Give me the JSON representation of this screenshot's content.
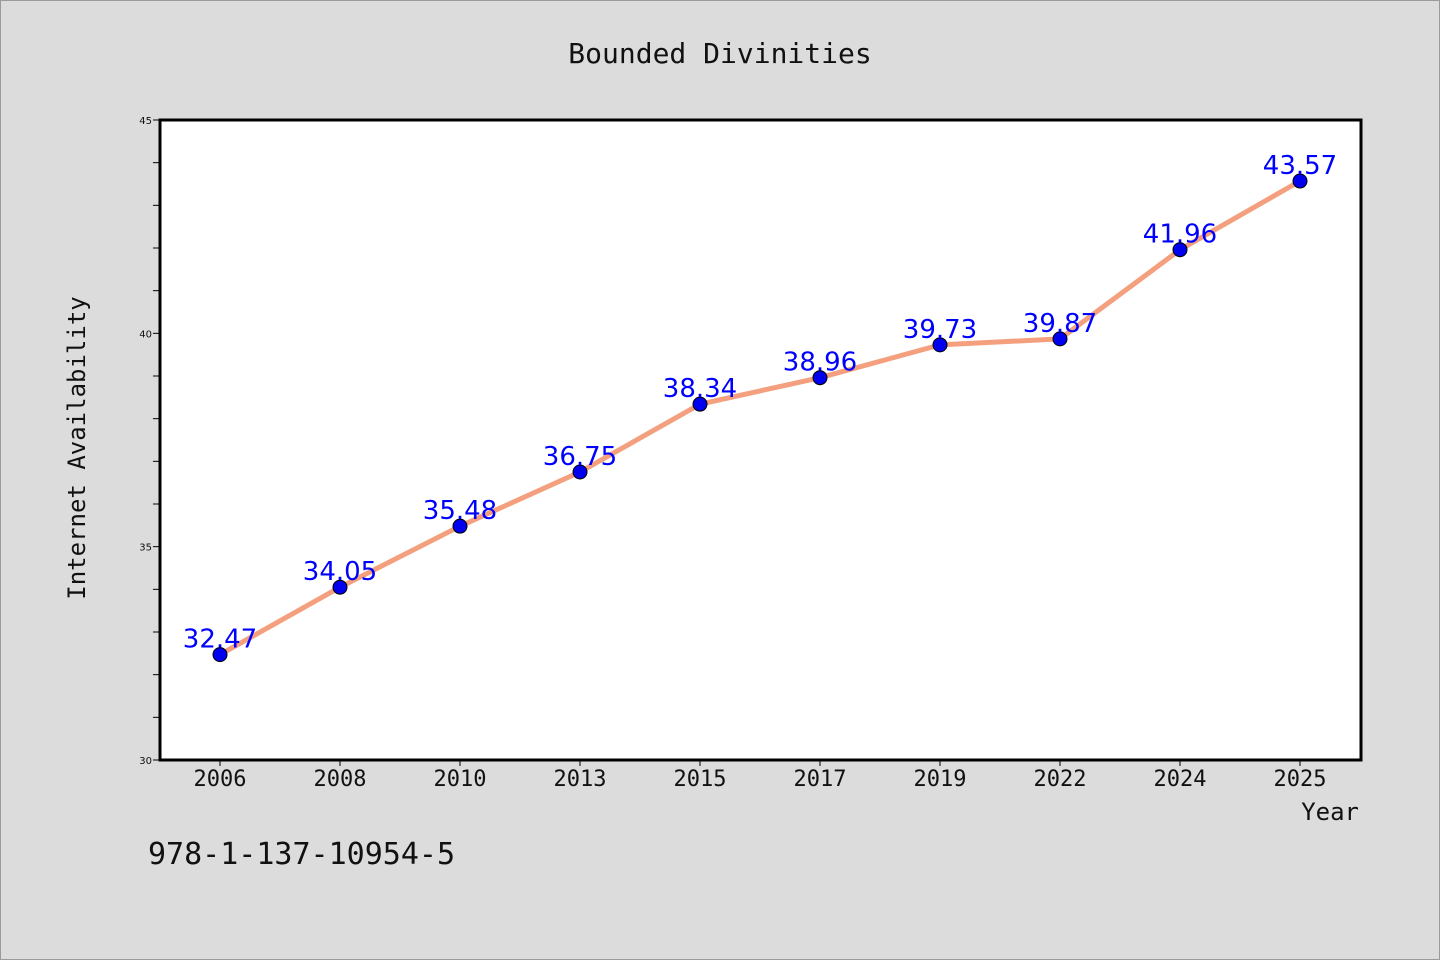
{
  "chart_data": {
    "type": "line",
    "title": "Bounded Divinities",
    "xlabel": "Year",
    "ylabel": "Internet Availability",
    "ylim": [
      30,
      45
    ],
    "y_ticks": [
      30,
      35,
      40,
      45
    ],
    "categories": [
      "2006",
      "2008",
      "2010",
      "2013",
      "2015",
      "2017",
      "2019",
      "2022",
      "2024",
      "2025"
    ],
    "series": [
      {
        "values": [
          32.47,
          34.05,
          35.48,
          36.75,
          38.34,
          38.96,
          39.73,
          39.87,
          41.96,
          43.57
        ],
        "line_color": "#f4a07e",
        "marker_color": "#0000ee",
        "label_color": "#0000ff"
      }
    ],
    "data_labels": [
      "32.47",
      "34.05",
      "35.48",
      "36.75",
      "38.34",
      "38.96",
      "39.73",
      "39.87",
      "41.96",
      "43.57"
    ],
    "grid": false,
    "legend": "none",
    "annotation": "978-1-137-10954-5"
  }
}
